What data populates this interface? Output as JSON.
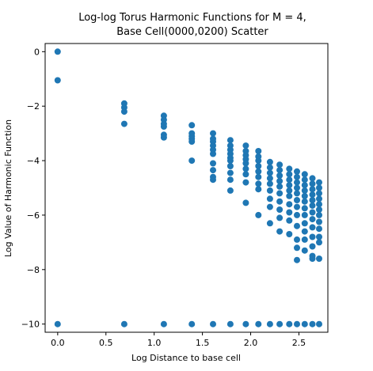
{
  "chart_data": {
    "type": "scatter",
    "title_lines": [
      "Log-log Torus Harmonic Functions for M = 4,",
      "Base Cell(0000,0200) Scatter"
    ],
    "xlabel": "Log Distance to base cell",
    "ylabel": "Log Value of Harmonic Function",
    "xlim": [
      -0.13,
      2.8
    ],
    "ylim": [
      -10.3,
      0.3
    ],
    "xticks": [
      0.0,
      0.5,
      1.0,
      1.5,
      2.0,
      2.5
    ],
    "xtick_labels": [
      "0.0",
      "0.5",
      "1.0",
      "1.5",
      "2.0",
      "2.5"
    ],
    "yticks": [
      0,
      -2,
      -4,
      -6,
      -8,
      -10
    ],
    "ytick_labels": [
      "0",
      "−2",
      "−4",
      "−6",
      "−8",
      "−10"
    ],
    "marker_color": "#1f77b4",
    "grid": false,
    "columns": [
      {
        "x": 0.0,
        "y": [
          0.0,
          -1.05,
          -10.0
        ]
      },
      {
        "x": 0.69,
        "y": [
          -1.9,
          -2.05,
          -2.2,
          -2.65,
          -10.0
        ]
      },
      {
        "x": 1.1,
        "y": [
          -2.35,
          -2.5,
          -2.65,
          -2.75,
          -3.05,
          -3.15,
          -10.0
        ]
      },
      {
        "x": 1.39,
        "y": [
          -2.7,
          -3.0,
          -3.1,
          -3.2,
          -3.3,
          -4.0,
          -10.0
        ]
      },
      {
        "x": 1.61,
        "y": [
          -3.0,
          -3.2,
          -3.3,
          -3.45,
          -3.6,
          -3.75,
          -4.1,
          -4.35,
          -4.6,
          -4.7,
          -10.0
        ]
      },
      {
        "x": 1.79,
        "y": [
          -3.25,
          -3.45,
          -3.6,
          -3.75,
          -3.9,
          -4.0,
          -4.2,
          -4.45,
          -4.7,
          -5.1,
          -10.0
        ]
      },
      {
        "x": 1.95,
        "y": [
          -3.45,
          -3.65,
          -3.8,
          -3.95,
          -4.1,
          -4.3,
          -4.5,
          -4.8,
          -5.55,
          -10.0
        ]
      },
      {
        "x": 2.08,
        "y": [
          -3.65,
          -3.85,
          -4.0,
          -4.2,
          -4.4,
          -4.6,
          -4.85,
          -5.05,
          -6.0,
          -10.0
        ]
      },
      {
        "x": 2.2,
        "y": [
          -4.05,
          -4.25,
          -4.45,
          -4.65,
          -4.85,
          -5.1,
          -5.4,
          -5.7,
          -6.3,
          -10.0
        ]
      },
      {
        "x": 2.3,
        "y": [
          -4.15,
          -4.35,
          -4.55,
          -4.75,
          -4.95,
          -5.2,
          -5.5,
          -5.8,
          -6.1,
          -6.6,
          -10.0
        ]
      },
      {
        "x": 2.4,
        "y": [
          -4.3,
          -4.5,
          -4.7,
          -4.9,
          -5.1,
          -5.3,
          -5.6,
          -5.9,
          -6.2,
          -6.7,
          -10.0
        ]
      },
      {
        "x": 2.48,
        "y": [
          -4.4,
          -4.6,
          -4.8,
          -5.0,
          -5.2,
          -5.45,
          -5.7,
          -6.0,
          -6.4,
          -6.9,
          -7.2,
          -7.65,
          -10.0
        ]
      },
      {
        "x": 2.56,
        "y": [
          -4.5,
          -4.7,
          -4.9,
          -5.1,
          -5.3,
          -5.5,
          -5.75,
          -6.0,
          -6.3,
          -6.6,
          -6.9,
          -7.3,
          -10.0
        ]
      },
      {
        "x": 2.64,
        "y": [
          -4.65,
          -4.85,
          -5.05,
          -5.25,
          -5.45,
          -5.65,
          -5.9,
          -6.15,
          -6.45,
          -6.8,
          -7.15,
          -7.5,
          -7.6,
          -10.0
        ]
      },
      {
        "x": 2.71,
        "y": [
          -4.8,
          -5.0,
          -5.2,
          -5.4,
          -5.6,
          -5.8,
          -6.0,
          -6.25,
          -6.5,
          -6.8,
          -7.0,
          -7.6,
          -10.0
        ]
      }
    ]
  }
}
